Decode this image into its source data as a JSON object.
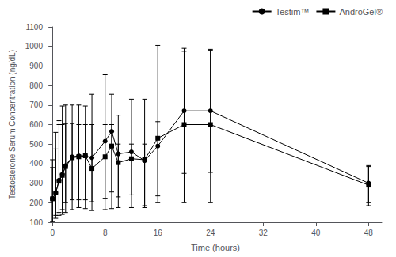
{
  "chart_data": {
    "type": "line",
    "xlabel": "Time (hours)",
    "ylabel": "Testosterone Serum Concentration (ng/dL)",
    "x": [
      0,
      0.5,
      1,
      1.5,
      2,
      3,
      4,
      5,
      6,
      8,
      9,
      10,
      12,
      14,
      16,
      20,
      24,
      48
    ],
    "series": [
      {
        "name": "Testim™",
        "color": "#000000",
        "marker": "circle",
        "values": [
          220,
          250,
          315,
          345,
          390,
          435,
          440,
          440,
          430,
          515,
          565,
          450,
          460,
          415,
          490,
          670,
          670,
          300
        ],
        "error_low": [
          100,
          135,
          150,
          165,
          200,
          215,
          215,
          215,
          205,
          220,
          255,
          230,
          240,
          185,
          235,
          350,
          355,
          200
        ],
        "error_high": [
          420,
          560,
          620,
          695,
          700,
          700,
          700,
          695,
          755,
          855,
          755,
          648,
          730,
          730,
          1005,
          975,
          980,
          385
        ]
      },
      {
        "name": "AndroGel®",
        "color": "#000000",
        "marker": "square",
        "values": [
          220,
          250,
          310,
          340,
          385,
          430,
          435,
          440,
          375,
          435,
          490,
          405,
          425,
          420,
          530,
          600,
          600,
          290
        ],
        "error_low": [
          100,
          120,
          135,
          140,
          150,
          165,
          175,
          170,
          160,
          165,
          170,
          175,
          175,
          175,
          200,
          200,
          200,
          185
        ],
        "error_high": [
          380,
          475,
          600,
          600,
          605,
          605,
          600,
          600,
          600,
          600,
          600,
          500,
          500,
          500,
          615,
          990,
          985,
          390
        ]
      }
    ],
    "xlim": [
      -0.5,
      50
    ],
    "xticks": [
      0,
      8,
      16,
      24,
      32,
      40,
      48
    ],
    "ylim": [
      100,
      1100
    ],
    "yticks": [
      100,
      200,
      300,
      400,
      500,
      600,
      700,
      800,
      900,
      1000,
      1100
    ],
    "legend": "upper right",
    "grid": false
  }
}
